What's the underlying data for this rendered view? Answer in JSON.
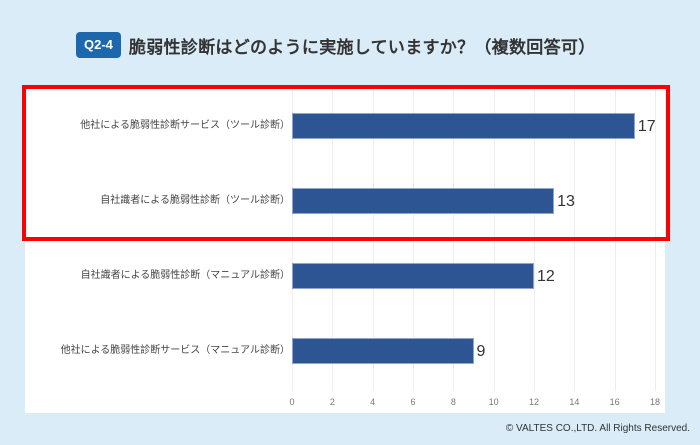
{
  "header": {
    "badge": "Q2-4",
    "title": "脆弱性診断はどのように実施していますか？（複数回答可）"
  },
  "colors": {
    "background": "#d9ecf8",
    "badge": "#1d68ad",
    "bar": "#2e5593",
    "highlight": "#ff0000"
  },
  "chart_data": {
    "type": "bar",
    "orientation": "horizontal",
    "title": "脆弱性診断はどのように実施していますか？（複数回答可）",
    "categories": [
      "他社による脆弱性診断サービス（ツール診断）",
      "自社識者による脆弱性診断（ツール診断）",
      "自社識者による脆弱性診断（マニュアル診断）",
      "他社による脆弱性診断サービス（マニュアル診断）"
    ],
    "values": [
      17,
      13,
      12,
      9
    ],
    "xlabel": "",
    "ylabel": "",
    "xlim": [
      0,
      18
    ],
    "xticks": [
      "0",
      "2",
      "4",
      "6",
      "8",
      "10",
      "12",
      "14",
      "16",
      "18"
    ],
    "grid": true,
    "data_labels": true,
    "highlighted_categories": [
      0,
      1
    ]
  },
  "footer": {
    "copyright": "© VALTES CO.,LTD. All Rights Reserved."
  }
}
